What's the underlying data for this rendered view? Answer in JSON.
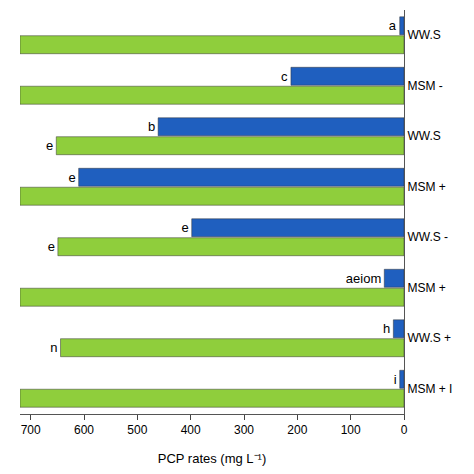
{
  "chart_data": {
    "type": "bar",
    "orientation": "horizontal",
    "categories": [
      "WW.S",
      "MSM -",
      "WW.S",
      "MSM +",
      "WW.S -",
      "MSM +",
      "WW.S +",
      "MSM + I"
    ],
    "series": [
      {
        "color": "#1f5fbf",
        "values": [
          8,
          212,
          461,
          610,
          398,
          37,
          20,
          8
        ],
        "letters": [
          "a",
          "c",
          "b",
          "e",
          "e",
          "aeiom",
          "h",
          "i"
        ]
      },
      {
        "color": "#8fce3c",
        "values": [
          720,
          720,
          652,
          720,
          649,
          720,
          644,
          720
        ],
        "letters": [
          null,
          null,
          "e",
          null,
          "e",
          null,
          "n",
          null
        ]
      }
    ],
    "xlabel": "PCP rates (mg L⁻¹)",
    "xlim": [
      0,
      720
    ],
    "xticks": [
      0,
      100,
      200,
      300,
      400,
      500,
      600,
      700
    ],
    "grid": false
  }
}
